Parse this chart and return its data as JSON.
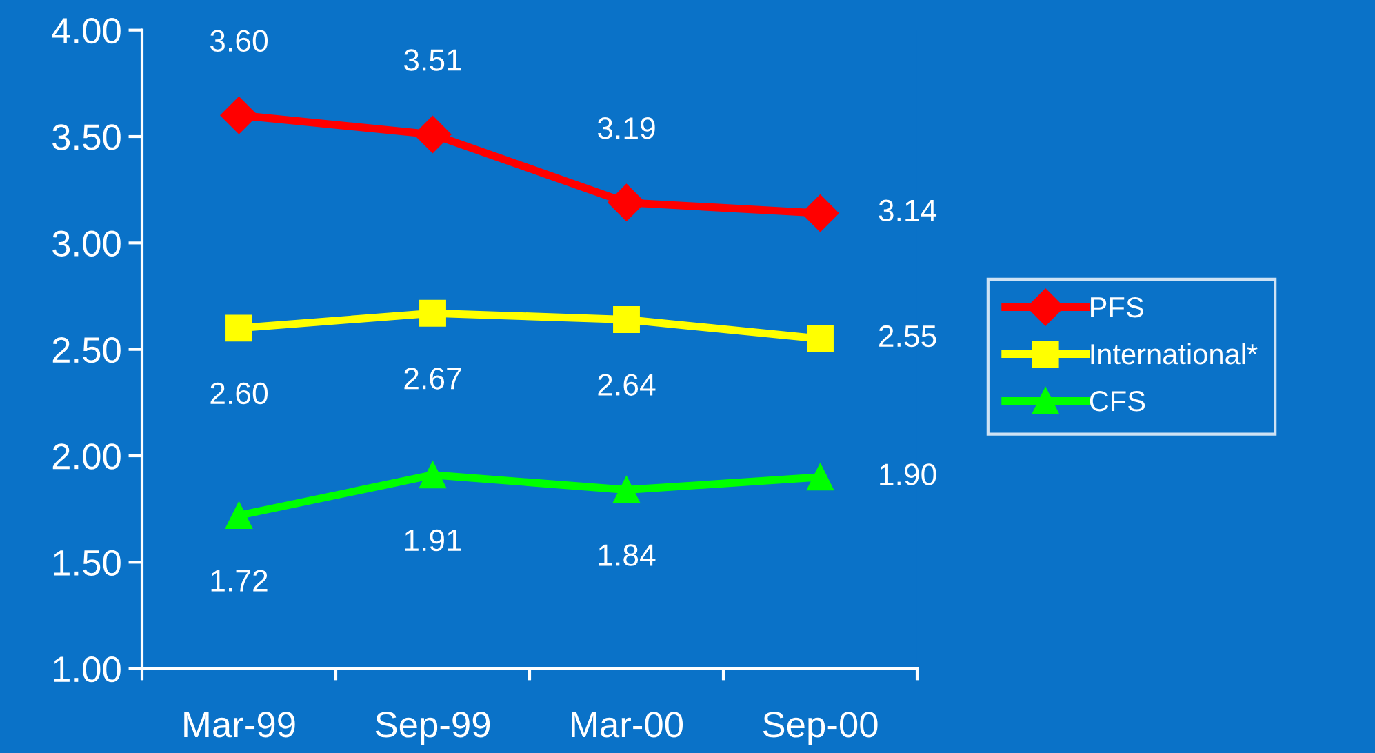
{
  "chart_data": {
    "type": "line",
    "categories": [
      "Mar-99",
      "Sep-99",
      "Mar-00",
      "Sep-00"
    ],
    "series": [
      {
        "name": "PFS",
        "color": "#ff0000",
        "marker": "diamond",
        "values": [
          3.6,
          3.51,
          3.19,
          3.14
        ],
        "value_labels": [
          "3.60",
          "3.51",
          "3.19",
          "3.14"
        ]
      },
      {
        "name": "International*",
        "color": "#ffff00",
        "marker": "square",
        "values": [
          2.6,
          2.67,
          2.64,
          2.55
        ],
        "value_labels": [
          "2.60",
          "2.67",
          "2.64",
          "2.55"
        ]
      },
      {
        "name": "CFS",
        "color": "#00ff00",
        "marker": "triangle",
        "values": [
          1.72,
          1.91,
          1.84,
          1.9
        ],
        "value_labels": [
          "1.72",
          "1.91",
          "1.84",
          "1.90"
        ]
      }
    ],
    "ylim": [
      1.0,
      4.0
    ],
    "yticks": [
      {
        "value": 1.0,
        "label": "1.00"
      },
      {
        "value": 1.5,
        "label": "1.50"
      },
      {
        "value": 2.0,
        "label": "2.00"
      },
      {
        "value": 2.5,
        "label": "2.50"
      },
      {
        "value": 3.0,
        "label": "3.00"
      },
      {
        "value": 3.5,
        "label": "3.50"
      },
      {
        "value": 4.0,
        "label": "4.00"
      }
    ],
    "legend": "right",
    "grid": false
  }
}
